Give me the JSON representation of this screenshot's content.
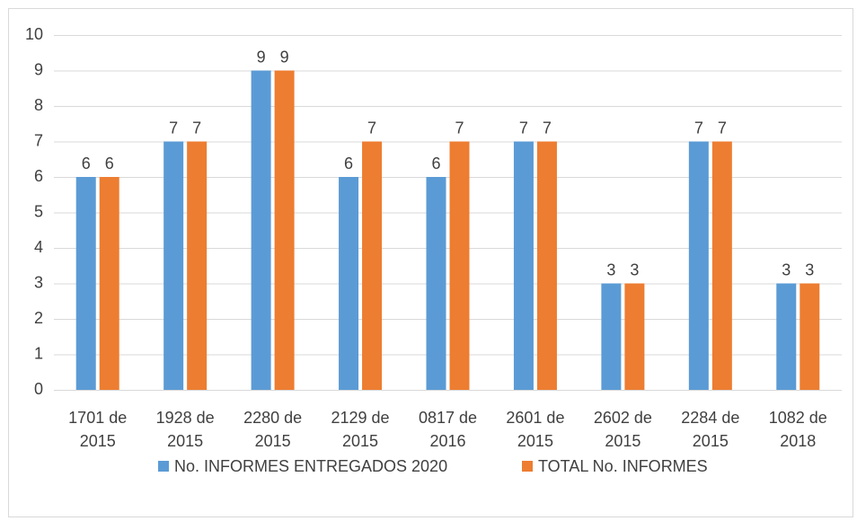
{
  "chart_data": {
    "type": "bar",
    "categories": [
      "1701 de 2015",
      "1928 de 2015",
      "2280 de 2015",
      "2129 de 2015",
      "0817 de 2016",
      "2601 de 2015",
      "2602 de 2015",
      "2284 de 2015",
      "1082 de 2018"
    ],
    "series": [
      {
        "name": "No. INFORMES ENTREGADOS 2020",
        "color": "#5b9bd5",
        "values": [
          6,
          7,
          9,
          6,
          6,
          7,
          3,
          7,
          3
        ]
      },
      {
        "name": "TOTAL No. INFORMES",
        "color": "#ed7d31",
        "values": [
          6,
          7,
          9,
          7,
          7,
          7,
          3,
          7,
          3
        ]
      }
    ],
    "ylim": [
      0,
      10
    ],
    "yticks": [
      0,
      1,
      2,
      3,
      4,
      5,
      6,
      7,
      8,
      9,
      10
    ],
    "grid": true,
    "legend": "bottom"
  }
}
